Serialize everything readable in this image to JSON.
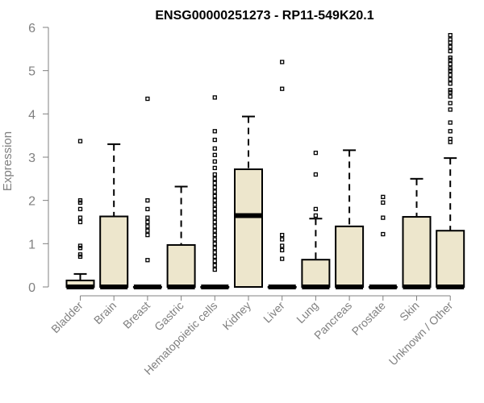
{
  "chart_data": {
    "type": "box",
    "title": "ENSG00000251273 - RP11-549K20.1",
    "ylabel": "Expression",
    "xlabel": "",
    "ylim": [
      0,
      6
    ],
    "yticks": [
      0,
      1,
      2,
      3,
      4,
      5,
      6
    ],
    "grid": false,
    "colors": {
      "box_fill": "#ede6cc",
      "box_stroke": "#000000",
      "axis": "#808080"
    },
    "categories": [
      "Bladder",
      "Brain",
      "Breast",
      "Gastric",
      "Hematopoietic cells",
      "Kidney",
      "Liver",
      "Lung",
      "Pancreas",
      "Prostate",
      "Skin",
      "Unknown / Other"
    ],
    "boxes": [
      {
        "q1": 0,
        "median": 0,
        "q3": 0.15,
        "whisker_low": 0,
        "whisker_high": 0.3,
        "outliers": [
          0.7,
          0.75,
          0.9,
          0.95,
          1.5,
          1.6,
          1.8,
          1.95,
          2.0,
          3.37
        ]
      },
      {
        "q1": 0,
        "median": 0,
        "q3": 1.63,
        "whisker_low": 0,
        "whisker_high": 3.3,
        "outliers": []
      },
      {
        "q1": 0,
        "median": 0,
        "q3": 0,
        "whisker_low": 0,
        "whisker_high": 0,
        "outliers": [
          0.62,
          1.2,
          1.3,
          1.4,
          1.5,
          1.6,
          1.8,
          2.0,
          4.35
        ]
      },
      {
        "q1": 0,
        "median": 0,
        "q3": 0.97,
        "whisker_low": 0,
        "whisker_high": 2.32,
        "outliers": []
      },
      {
        "q1": 0,
        "median": 0,
        "q3": 0,
        "whisker_low": 0,
        "whisker_high": 0,
        "outliers": [
          0.4,
          0.5,
          0.6,
          0.7,
          0.8,
          0.9,
          1.0,
          1.1,
          1.2,
          1.3,
          1.4,
          1.5,
          1.6,
          1.7,
          1.8,
          1.9,
          2.0,
          2.1,
          2.2,
          2.3,
          2.4,
          2.5,
          2.6,
          2.75,
          2.9,
          3.05,
          3.2,
          3.4,
          3.6,
          4.38
        ]
      },
      {
        "q1": 0,
        "median": 1.65,
        "q3": 2.72,
        "whisker_low": 0,
        "whisker_high": 3.94,
        "outliers": []
      },
      {
        "q1": 0,
        "median": 0,
        "q3": 0,
        "whisker_low": 0,
        "whisker_high": 0,
        "outliers": [
          0.65,
          0.85,
          0.95,
          1.1,
          1.2,
          4.58,
          5.2
        ]
      },
      {
        "q1": 0,
        "median": 0,
        "q3": 0.63,
        "whisker_low": 0,
        "whisker_high": 1.58,
        "outliers": [
          1.65,
          1.8,
          2.6,
          3.1
        ]
      },
      {
        "q1": 0,
        "median": 0,
        "q3": 1.4,
        "whisker_low": 0,
        "whisker_high": 3.16,
        "outliers": []
      },
      {
        "q1": 0,
        "median": 0,
        "q3": 0,
        "whisker_low": 0,
        "whisker_high": 0,
        "outliers": [
          1.22,
          1.6,
          1.95,
          2.08
        ]
      },
      {
        "q1": 0,
        "median": 0,
        "q3": 1.62,
        "whisker_low": 0,
        "whisker_high": 2.5,
        "outliers": []
      },
      {
        "q1": 0,
        "median": 0,
        "q3": 1.3,
        "whisker_low": 0,
        "whisker_high": 2.98,
        "outliers": [
          3.35,
          3.42,
          3.6,
          3.8,
          4.1,
          4.25,
          4.4,
          4.5,
          4.55,
          4.7,
          4.8,
          4.9,
          5.0,
          5.05,
          5.15,
          5.25,
          5.3,
          5.45,
          5.55,
          5.65,
          5.72,
          5.82
        ]
      }
    ]
  }
}
